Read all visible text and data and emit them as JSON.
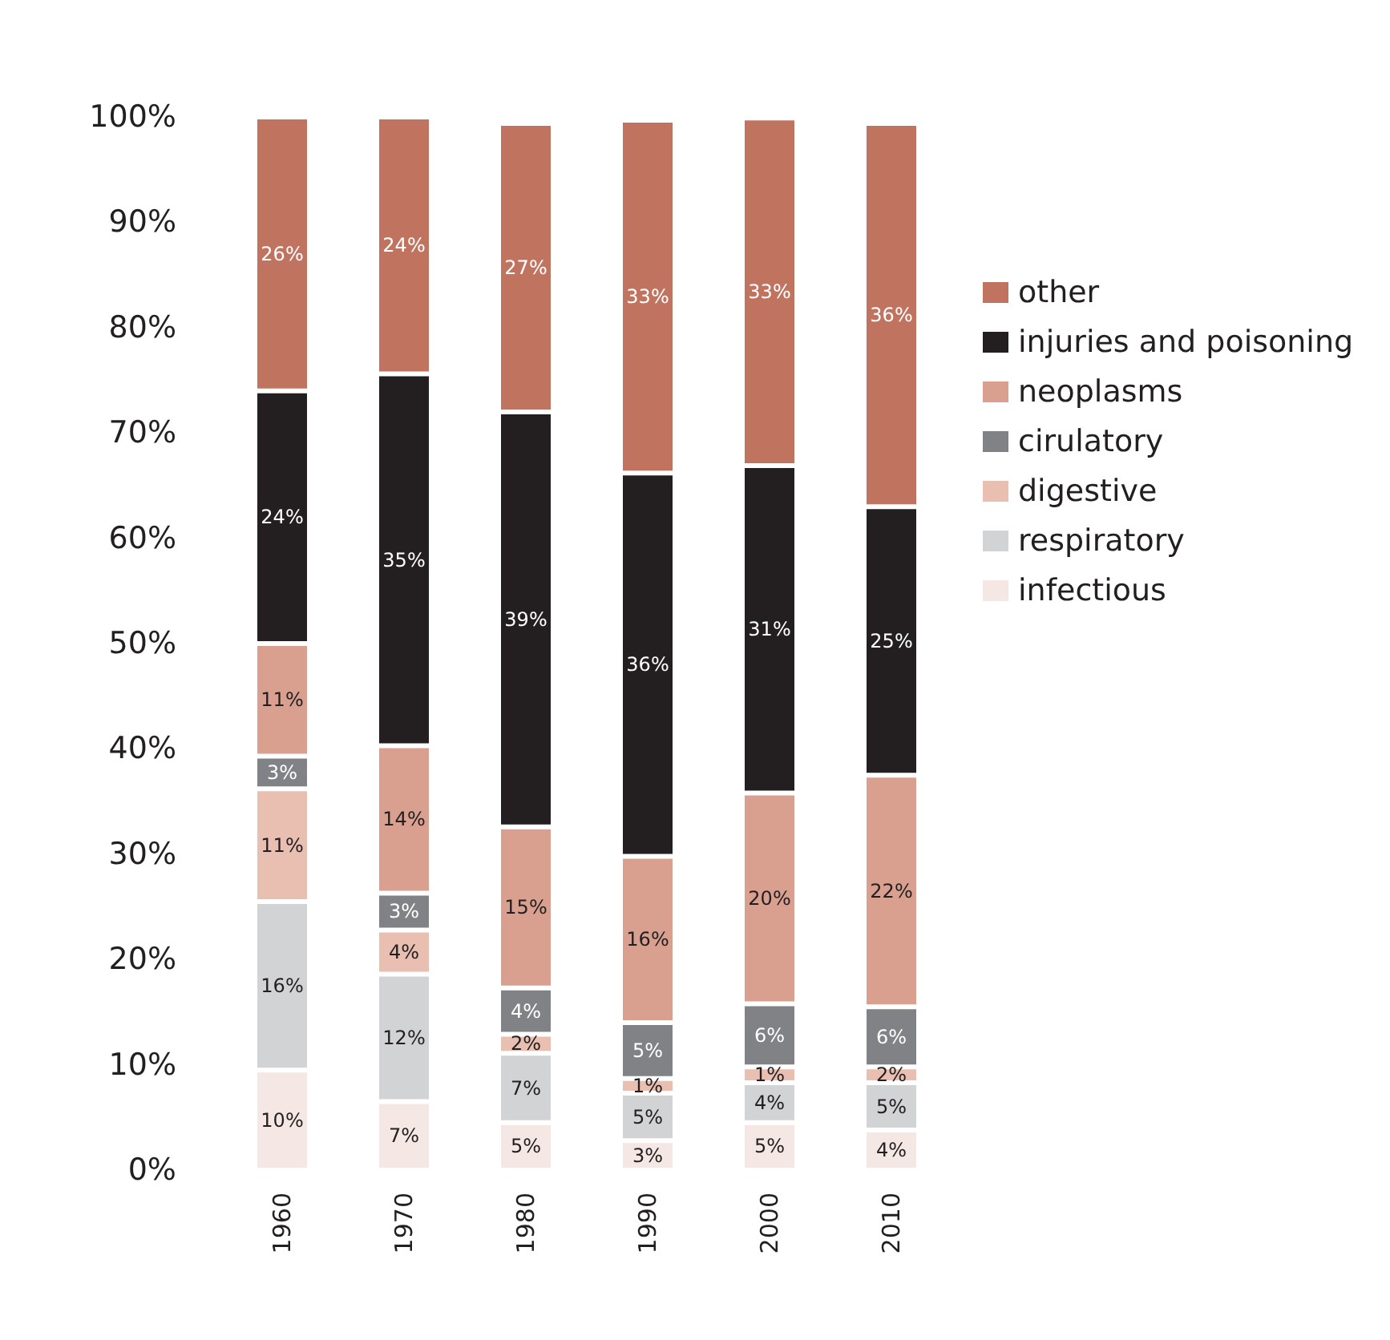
{
  "chart_data": {
    "type": "bar",
    "stacked": true,
    "categories": [
      "1960",
      "1970",
      "1980",
      "1990",
      "2000",
      "2010"
    ],
    "series": [
      {
        "name": "infectious",
        "color": "#f5e8e4",
        "values": [
          9.5,
          6.5,
          4.5,
          2.8,
          4.5,
          3.8
        ],
        "value_labels": [
          "10%",
          "7%",
          "5%",
          "3%",
          "5%",
          "4%"
        ]
      },
      {
        "name": "respiratory",
        "color": "#d1d3d4",
        "values": [
          16,
          12.1,
          6.6,
          4.5,
          3.8,
          4.5
        ],
        "value_labels": [
          "16%",
          "12%",
          "7%",
          "5%",
          "4%",
          "5%"
        ]
      },
      {
        "name": "digestive",
        "color": "#e8bfb0",
        "values": [
          10.7,
          4.2,
          1.8,
          1.4,
          1.5,
          1.5
        ],
        "value_labels": [
          "11%",
          "4%",
          "2%",
          "1%",
          "1%",
          "2%"
        ]
      },
      {
        "name": "cirulatory",
        "color": "#808285",
        "values": [
          3.1,
          3.5,
          4.4,
          5.3,
          6,
          5.7
        ],
        "value_labels": [
          "3%",
          "3%",
          "4%",
          "5%",
          "6%",
          "6%"
        ]
      },
      {
        "name": "neoplasms",
        "color": "#d9a090",
        "values": [
          10.7,
          14,
          15.3,
          15.8,
          20,
          22
        ],
        "value_labels": [
          "11%",
          "14%",
          "15%",
          "16%",
          "20%",
          "22%"
        ]
      },
      {
        "name": "injuries and poisoning",
        "color": "#231f20",
        "values": [
          24,
          35.3,
          39.4,
          36.4,
          31.1,
          25.5
        ],
        "value_labels": [
          "24%",
          "35%",
          "39%",
          "36%",
          "31%",
          "25%"
        ]
      },
      {
        "name": "other",
        "color": "#c07460",
        "values": [
          26,
          24.4,
          27.4,
          33.5,
          33,
          36.4
        ],
        "value_labels": [
          "26%",
          "24%",
          "27%",
          "33%",
          "33%",
          "36%"
        ]
      }
    ],
    "ylim": [
      0,
      100
    ],
    "yticks": [
      {
        "value": 0,
        "label": "0%"
      },
      {
        "value": 10,
        "label": "10%"
      },
      {
        "value": 20,
        "label": "20%"
      },
      {
        "value": 30,
        "label": "30%"
      },
      {
        "value": 40,
        "label": "40%"
      },
      {
        "value": 50,
        "label": "50%"
      },
      {
        "value": 60,
        "label": "60%"
      },
      {
        "value": 70,
        "label": "70%"
      },
      {
        "value": 80,
        "label": "80%"
      },
      {
        "value": 90,
        "label": "90%"
      },
      {
        "value": 100,
        "label": "100%"
      }
    ],
    "grid": false,
    "legend": "right"
  }
}
